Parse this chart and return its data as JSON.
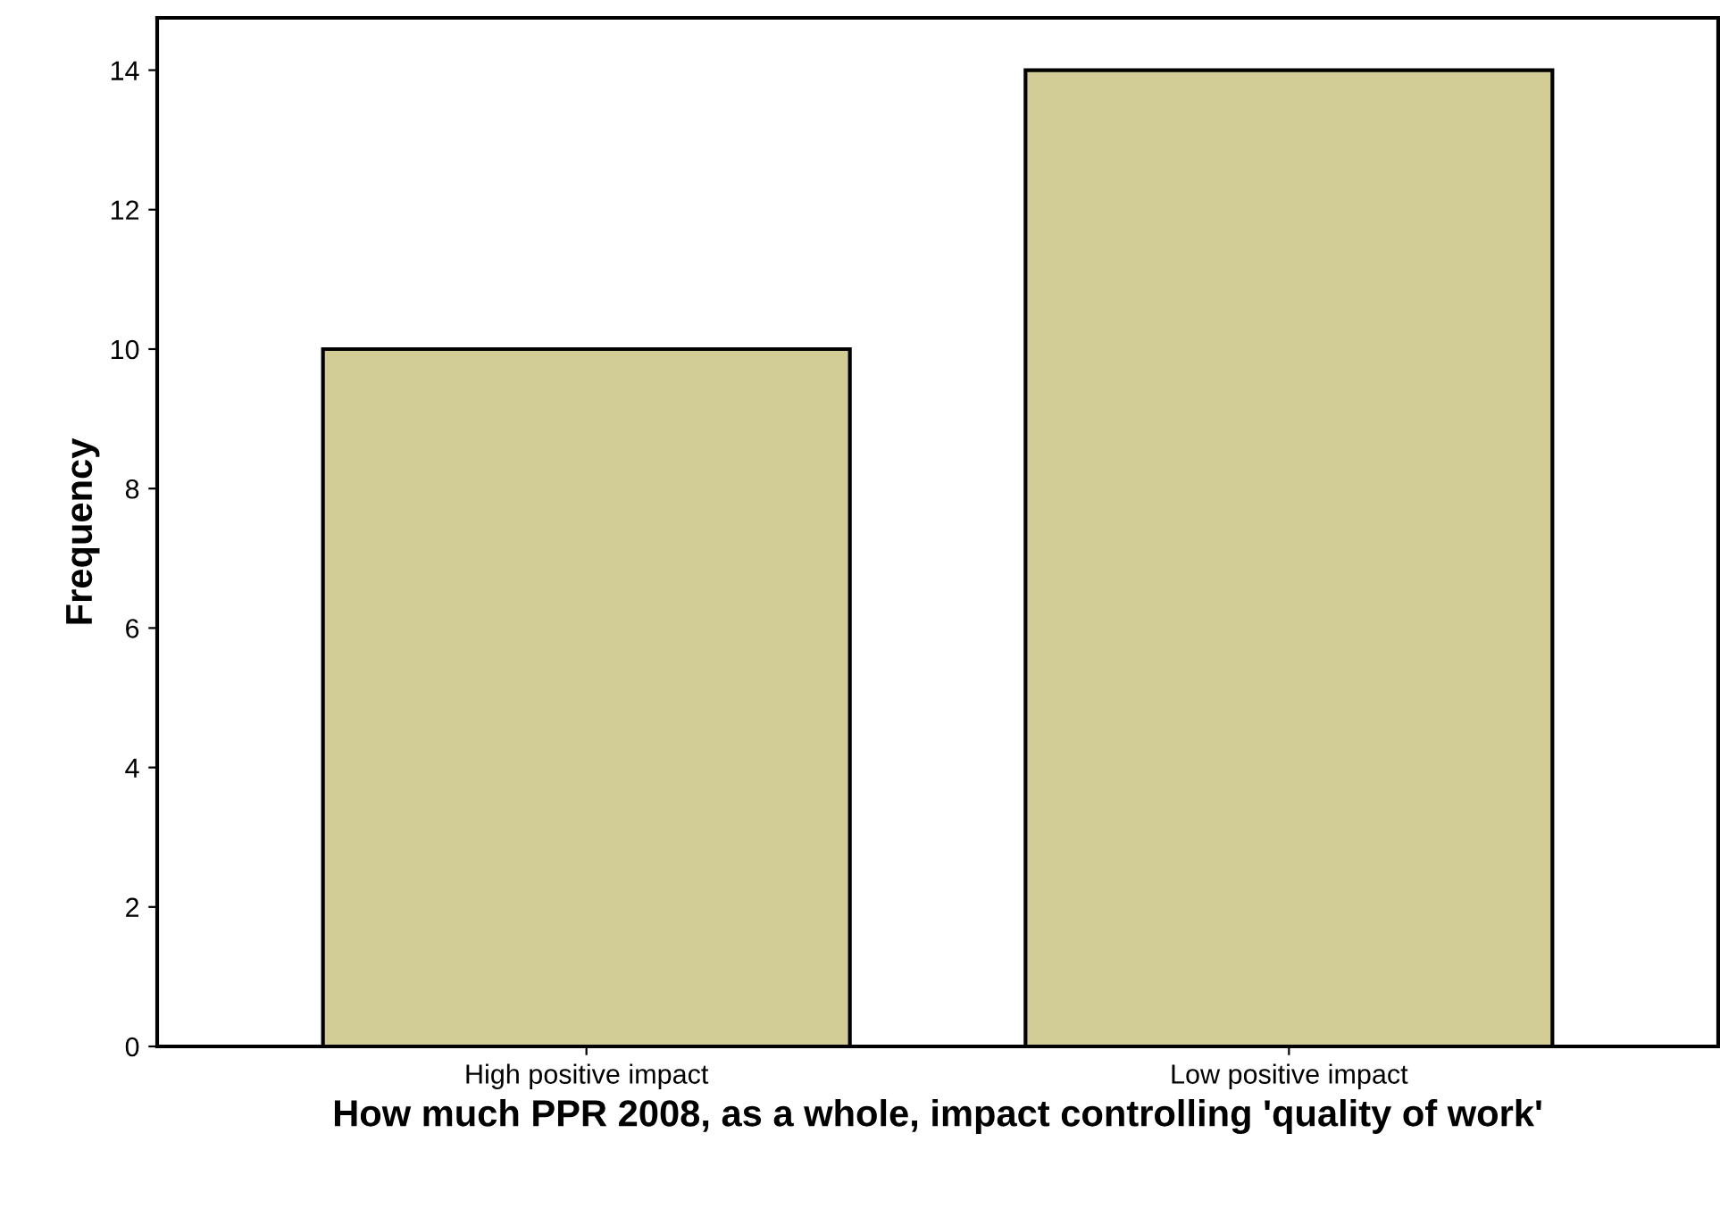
{
  "chart_data": {
    "type": "bar",
    "xlabel": "How much PPR 2008, as a whole, impact controlling 'quality of work'",
    "ylabel": "Frequency",
    "categories": [
      "High positive impact",
      "Low positive impact"
    ],
    "values": [
      10,
      14
    ],
    "color": "#d2cc96",
    "ylim": [
      0,
      14.75
    ],
    "yticks": [
      0,
      2,
      4,
      6,
      8,
      10,
      12,
      14
    ],
    "grid": false
  }
}
